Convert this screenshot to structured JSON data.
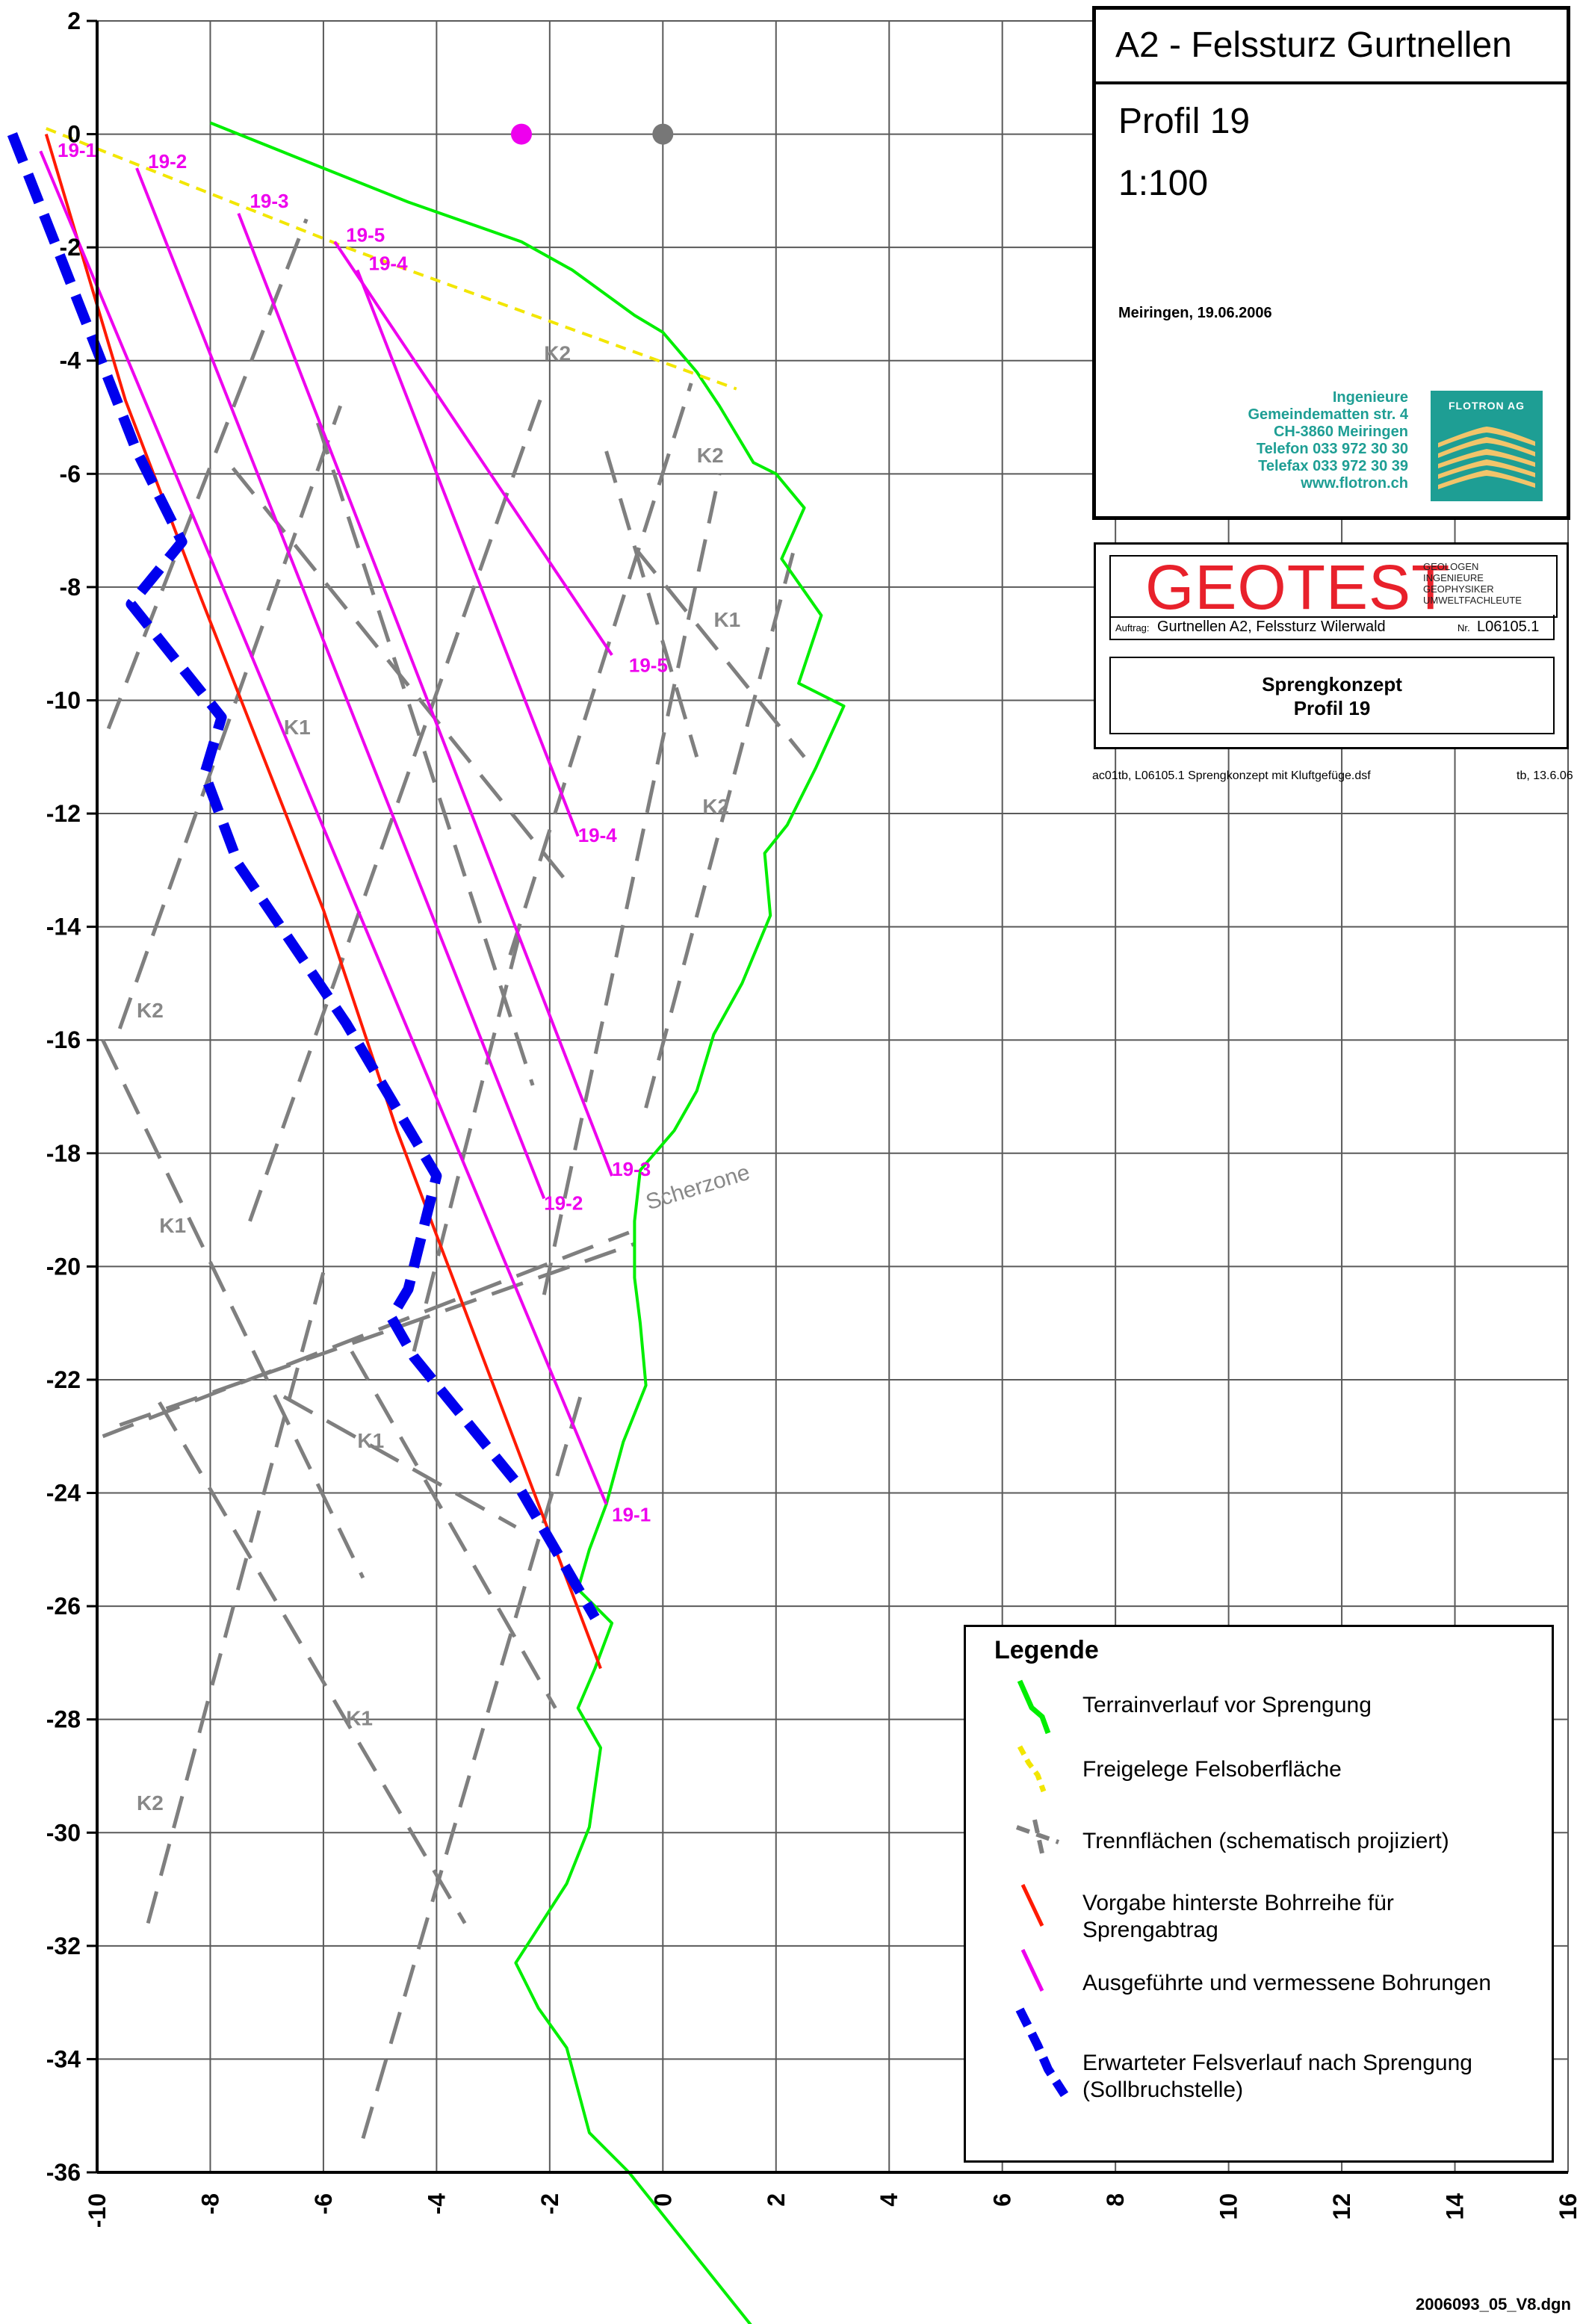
{
  "chart_data": {
    "type": "line",
    "title": "A2  -  Felssturz Gurtnellen",
    "xlim": [
      -10,
      16
    ],
    "ylim": [
      -36,
      2
    ],
    "x_ticks": [
      -10,
      -8,
      -6,
      -4,
      -2,
      0,
      2,
      4,
      6,
      8,
      10,
      12,
      14,
      16
    ],
    "y_ticks": [
      2,
      0,
      -2,
      -4,
      -6,
      -8,
      -10,
      -12,
      -14,
      -16,
      -18,
      -20,
      -22,
      -24,
      -26,
      -28,
      -30,
      -32,
      -34,
      -36
    ],
    "grid": true,
    "series": [
      {
        "name": "Terrainverlauf  vor Sprengung",
        "color": "#00ee00",
        "style": "solid",
        "points": [
          [
            -8.0,
            0.2
          ],
          [
            -6,
            -0.6
          ],
          [
            -4.5,
            -1.2
          ],
          [
            -2.5,
            -1.9
          ],
          [
            -1.6,
            -2.4
          ],
          [
            -0.5,
            -3.2
          ],
          [
            0,
            -3.5
          ],
          [
            0.6,
            -4.2
          ],
          [
            1,
            -4.8
          ],
          [
            1.6,
            -5.8
          ],
          [
            2.0,
            -6.0
          ],
          [
            2.5,
            -6.6
          ],
          [
            2.1,
            -7.5
          ],
          [
            2.8,
            -8.5
          ],
          [
            2.4,
            -9.7
          ],
          [
            3.2,
            -10.1
          ],
          [
            2.7,
            -11.2
          ],
          [
            2.2,
            -12.2
          ],
          [
            1.8,
            -12.7
          ],
          [
            1.9,
            -13.8
          ],
          [
            1.4,
            -15
          ],
          [
            0.9,
            -15.9
          ],
          [
            0.6,
            -16.9
          ],
          [
            0.2,
            -17.6
          ],
          [
            -0.4,
            -18.3
          ],
          [
            -0.5,
            -19.2
          ],
          [
            -0.5,
            -20.2
          ],
          [
            -0.4,
            -21
          ],
          [
            -0.3,
            -22.1
          ],
          [
            -0.7,
            -23.1
          ],
          [
            -1.0,
            -24.2
          ],
          [
            -1.3,
            -25
          ],
          [
            -1.5,
            -25.7
          ],
          [
            -0.9,
            -26.3
          ],
          [
            -1.2,
            -27.1
          ],
          [
            -1.5,
            -27.8
          ],
          [
            -1.1,
            -28.5
          ],
          [
            -1.3,
            -29.9
          ],
          [
            -1.7,
            -30.9
          ],
          [
            -2.6,
            -32.3
          ],
          [
            -2.2,
            -33.1
          ],
          [
            -1.7,
            -33.8
          ],
          [
            -1.3,
            -35.3
          ],
          [
            -0.6,
            -36
          ],
          [
            2.6,
            -40
          ]
        ]
      },
      {
        "name": "Freigelege Felsoberfläche",
        "color": "#f2e600",
        "style": "dashed",
        "points": [
          [
            -10.9,
            0.1
          ],
          [
            -5.6,
            -2.0
          ],
          [
            1.3,
            -4.5
          ]
        ]
      },
      {
        "name": "Vorgabe hinterste Bohrreihe für Sprengabtrag",
        "color": "#ff1a00",
        "style": "solid",
        "points": [
          [
            -10.9,
            0.0
          ],
          [
            -9.5,
            -4.7
          ],
          [
            -8.2,
            -8.1
          ],
          [
            -6.0,
            -13.7
          ],
          [
            -4.7,
            -17.6
          ],
          [
            -1.1,
            -27.1
          ]
        ]
      },
      {
        "name": "Erwarteter Felsverlauf nach Sprengung (Sollbruchstelle)",
        "color": "#0000ee",
        "style": "dashed",
        "points": [
          [
            -11.5,
            0.0
          ],
          [
            -9.3,
            -5.6
          ],
          [
            -8.5,
            -7.2
          ],
          [
            -9.4,
            -8.3
          ],
          [
            -7.8,
            -10.3
          ],
          [
            -8.1,
            -11.3
          ],
          [
            -7.5,
            -12.9
          ],
          [
            -5.6,
            -15.7
          ],
          [
            -4.0,
            -18.4
          ],
          [
            -4.5,
            -20.4
          ],
          [
            -4.8,
            -20.9
          ],
          [
            -4.4,
            -21.6
          ],
          [
            -2.6,
            -23.8
          ],
          [
            -1.2,
            -26.2
          ]
        ]
      }
    ],
    "boreholes": [
      {
        "label": "19-1",
        "label_pos": [
          -10.7,
          -0.4
        ],
        "x": [
          -11.0,
          -1.0
        ],
        "y": [
          -0.3,
          -24.2
        ],
        "end_label": "19-1",
        "end_label_pos": [
          -0.9,
          -24.5
        ]
      },
      {
        "label": "19-2",
        "label_pos": [
          -9.1,
          -0.6
        ],
        "x": [
          -9.3,
          -2.1
        ],
        "y": [
          -0.6,
          -18.8
        ],
        "end_label": "19-2",
        "end_label_pos": [
          -2.1,
          -19.0
        ]
      },
      {
        "label": "19-3",
        "label_pos": [
          -7.3,
          -1.3
        ],
        "x": [
          -7.5,
          -0.9
        ],
        "y": [
          -1.4,
          -18.4
        ],
        "end_label": "19-3",
        "end_label_pos": [
          -0.9,
          -18.4
        ]
      },
      {
        "label": "19-4",
        "label_pos": [
          -5.2,
          -2.4
        ],
        "x": [
          -5.4,
          -1.5
        ],
        "y": [
          -2.4,
          -12.4
        ],
        "end_label": "19-4",
        "end_label_pos": [
          -1.5,
          -12.5
        ]
      },
      {
        "label": "19-5",
        "label_pos": [
          -5.6,
          -1.9
        ],
        "x": [
          -5.8,
          -0.9
        ],
        "y": [
          -1.9,
          -9.2
        ],
        "end_label": "19-5",
        "end_label_pos": [
          -0.6,
          -9.5
        ]
      }
    ],
    "markers": [
      {
        "x": -2.5,
        "y": 0.0,
        "color": "#ee00ee"
      },
      {
        "x": 0.0,
        "y": 0.0,
        "color": "#777777"
      }
    ],
    "joints_color": "#7f7f7f",
    "joints": [
      [
        [
          -9.8,
          -10.5
        ],
        [
          -6.3,
          -1.5
        ]
      ],
      [
        [
          -9.6,
          -15.8
        ],
        [
          -5.7,
          -4.8
        ]
      ],
      [
        [
          -7.3,
          -19.2
        ],
        [
          -2.1,
          -4.5
        ]
      ],
      [
        [
          -2.7,
          -14.5
        ],
        [
          0.5,
          -4.4
        ]
      ],
      [
        [
          -2.1,
          -20.5
        ],
        [
          1.0,
          -6.0
        ]
      ],
      [
        [
          -0.3,
          -17.2
        ],
        [
          2.3,
          -7.4
        ]
      ],
      [
        [
          -4.4,
          -21.5
        ],
        [
          -2.5,
          -14.0
        ]
      ],
      [
        [
          -9.1,
          -31.6
        ],
        [
          -6.0,
          -20.1
        ]
      ],
      [
        [
          -5.3,
          -35.4
        ],
        [
          -1.4,
          -22.1
        ]
      ],
      [
        [
          -6.1,
          -5.1
        ],
        [
          -2.3,
          -16.8
        ]
      ],
      [
        [
          -7.6,
          -5.9
        ],
        [
          -1.7,
          -13.2
        ]
      ],
      [
        [
          -1.0,
          -5.6
        ],
        [
          0.6,
          -11.0
        ]
      ],
      [
        [
          -0.5,
          -7.3
        ],
        [
          2.5,
          -11.0
        ]
      ],
      [
        [
          -9.9,
          -16.0
        ],
        [
          -5.3,
          -25.5
        ]
      ],
      [
        [
          -8.9,
          -22.4
        ],
        [
          -3.5,
          -31.6
        ]
      ],
      [
        [
          -5.5,
          -21.5
        ],
        [
          -1.9,
          -27.8
        ]
      ],
      [
        [
          -6.7,
          -22.3
        ],
        [
          -2.6,
          -24.6
        ]
      ],
      [
        [
          -9.9,
          -23.0
        ],
        [
          -0.6,
          -19.4
        ]
      ],
      [
        [
          -9.6,
          -22.8
        ],
        [
          -0.5,
          -19.6
        ]
      ]
    ],
    "joint_labels": [
      {
        "text": "K2",
        "x": -2.1,
        "y": -4.0
      },
      {
        "text": "K2",
        "x": 0.6,
        "y": -5.8
      },
      {
        "text": "K1",
        "x": 0.9,
        "y": -8.7
      },
      {
        "text": "K1",
        "x": -6.7,
        "y": -10.6
      },
      {
        "text": "K2",
        "x": 0.7,
        "y": -12.0
      },
      {
        "text": "K2",
        "x": -9.3,
        "y": -15.6
      },
      {
        "text": "K1",
        "x": -8.9,
        "y": -19.4
      },
      {
        "text": "K1",
        "x": -5.4,
        "y": -23.2
      },
      {
        "text": "K1",
        "x": -5.6,
        "y": -28.1
      },
      {
        "text": "K2",
        "x": -9.3,
        "y": -29.6
      }
    ],
    "scherzone_label": {
      "text": "Scherzone",
      "x": -0.25,
      "y": -19.0
    }
  },
  "title_block": {
    "title": "A2  -  Felssturz Gurtnellen",
    "profile": "Profil 19",
    "scale": "1:100",
    "place_date": "Meiringen,  19.06.2006",
    "company_lines": [
      "Ingenieure",
      "Gemeindematten str. 4",
      "CH-3860 Meiringen",
      "Telefon  033 972 30 30",
      "Telefax  033 972 30 39",
      "www.flotron.ch"
    ],
    "logo_text": "FLOTRON AG",
    "logo_color": "#1e9e94"
  },
  "geotest": {
    "logo": "GEOTEST",
    "logo_color": "#e8212b",
    "tagline": [
      "GEOLOGEN",
      "INGENIEURE",
      "GEOPHYSIKER",
      "UMWELTFACHLEUTE"
    ],
    "auftrag_label": "Auftrag:",
    "auftrag": "Gurtnellen A2, Felssturz Wilerwald",
    "nr_label": "Nr.",
    "nr": "L06105.1",
    "subject_line1": "Sprengkonzept",
    "subject_line2": "Profil 19",
    "file_info": "ac01tb, L06105.1 Sprengkonzept mit Kluftgefüge.dsf",
    "signed": "tb, 13.6.06"
  },
  "legend": {
    "title": "Legende",
    "items": [
      {
        "label": "Terrainverlauf  vor Sprengung",
        "color": "#00ee00",
        "style": "solid"
      },
      {
        "label": "Freigelege Felsoberfläche",
        "color": "#f2e600",
        "style": "dashed"
      },
      {
        "label": "Trennflächen (schematisch projiziert)",
        "color": "#7f7f7f",
        "style": "cross"
      },
      {
        "label": "Vorgabe hinterste Bohrreihe für Sprengabtrag",
        "color": "#ff1a00",
        "style": "solid"
      },
      {
        "label": "Ausgeführte und vermessene Bohrungen",
        "color": "#ee00ee",
        "style": "solid"
      },
      {
        "label": "Erwarteter Felsverlauf nach Sprengung (Sollbruchstelle)",
        "color": "#0000ee",
        "style": "dashed"
      }
    ]
  },
  "footer_code": "2006093_05_V8.dgn"
}
